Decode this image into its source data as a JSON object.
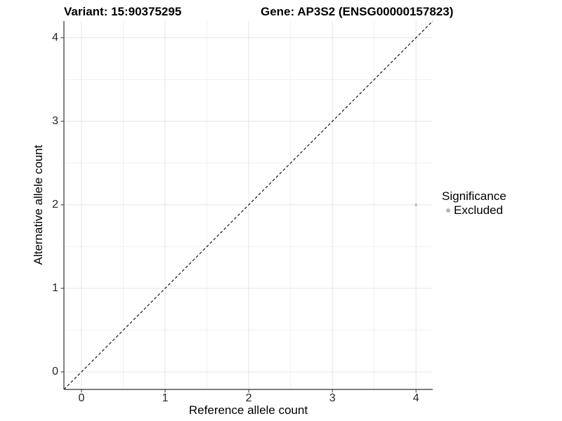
{
  "chart_data": {
    "type": "scatter",
    "title_left": "Variant: 15:90375295",
    "title_right": "Gene: AP3S2 (ENSG00000157823)",
    "xlabel": "Reference allele count",
    "ylabel": "Alternative allele count",
    "xlim": [
      -0.21,
      4.2
    ],
    "ylim": [
      -0.21,
      4.2
    ],
    "xticks": [
      0,
      1,
      2,
      3,
      4
    ],
    "yticks": [
      0,
      1,
      2,
      3,
      4
    ],
    "xticks_minor": [
      0.5,
      1.5,
      2.5,
      3.5
    ],
    "yticks_minor": [
      0.5,
      1.5,
      2.5,
      3.5
    ],
    "grid": "major+minor",
    "abline": {
      "slope": 1,
      "intercept": 0,
      "style": "dashed",
      "color": "#000000"
    },
    "series": [
      {
        "name": "Excluded",
        "color": "#b5b5b5",
        "points": [
          {
            "x": 4,
            "y": 2
          }
        ]
      }
    ],
    "legend": {
      "title": "Significance",
      "position": "right",
      "items": [
        {
          "label": "Excluded",
          "color": "#b5b5b5"
        }
      ]
    },
    "style": {
      "grid_major_color": "#e4e4e4",
      "grid_minor_color": "#f1f1f1",
      "axis_line_color": "#333333",
      "tick_color": "#333333",
      "point_radius": 1.8,
      "background": "#ffffff"
    }
  }
}
